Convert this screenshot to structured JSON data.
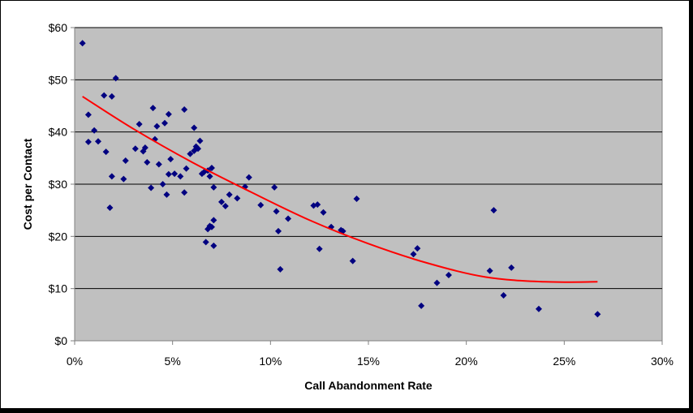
{
  "chart_data": {
    "type": "scatter",
    "title": "",
    "xlabel": "Call Abandonment Rate",
    "ylabel": "Cost per Contact",
    "xlim": [
      0,
      0.3
    ],
    "ylim": [
      0,
      60
    ],
    "x_ticks": [
      {
        "value": 0,
        "label": "0%"
      },
      {
        "value": 0.05,
        "label": "5%"
      },
      {
        "value": 0.1,
        "label": "10%"
      },
      {
        "value": 0.15,
        "label": "15%"
      },
      {
        "value": 0.2,
        "label": "20%"
      },
      {
        "value": 0.25,
        "label": "25%"
      },
      {
        "value": 0.3,
        "label": "30%"
      }
    ],
    "y_ticks": [
      {
        "value": 0,
        "label": "$0"
      },
      {
        "value": 10,
        "label": "$10"
      },
      {
        "value": 20,
        "label": "$20"
      },
      {
        "value": 30,
        "label": "$30"
      },
      {
        "value": 40,
        "label": "$40"
      },
      {
        "value": 50,
        "label": "$50"
      },
      {
        "value": 60,
        "label": "$60"
      }
    ],
    "grid": "horizontal",
    "legend": "none",
    "colors": {
      "plot_background": "#c0c0c0",
      "points": "#000080",
      "trendline": "#ff0000",
      "gridlines": "#000000"
    },
    "points": [
      [
        0.004,
        57.0
      ],
      [
        0.007,
        43.3
      ],
      [
        0.007,
        38.1
      ],
      [
        0.01,
        40.3
      ],
      [
        0.012,
        38.2
      ],
      [
        0.015,
        47.0
      ],
      [
        0.016,
        36.2
      ],
      [
        0.018,
        25.5
      ],
      [
        0.019,
        31.5
      ],
      [
        0.019,
        46.8
      ],
      [
        0.021,
        50.3
      ],
      [
        0.025,
        31.0
      ],
      [
        0.026,
        34.5
      ],
      [
        0.031,
        36.8
      ],
      [
        0.033,
        41.5
      ],
      [
        0.035,
        36.3
      ],
      [
        0.036,
        37.0
      ],
      [
        0.037,
        34.2
      ],
      [
        0.039,
        29.3
      ],
      [
        0.04,
        44.6
      ],
      [
        0.041,
        38.6
      ],
      [
        0.042,
        41.1
      ],
      [
        0.043,
        33.8
      ],
      [
        0.045,
        30.0
      ],
      [
        0.046,
        41.7
      ],
      [
        0.047,
        28.0
      ],
      [
        0.048,
        43.4
      ],
      [
        0.048,
        31.9
      ],
      [
        0.049,
        34.8
      ],
      [
        0.051,
        32.0
      ],
      [
        0.054,
        31.5
      ],
      [
        0.056,
        44.3
      ],
      [
        0.056,
        28.4
      ],
      [
        0.057,
        33.0
      ],
      [
        0.059,
        35.8
      ],
      [
        0.061,
        40.8
      ],
      [
        0.061,
        36.4
      ],
      [
        0.062,
        37.2
      ],
      [
        0.063,
        36.8
      ],
      [
        0.064,
        38.3
      ],
      [
        0.065,
        32.0
      ],
      [
        0.066,
        32.3
      ],
      [
        0.067,
        18.9
      ],
      [
        0.068,
        32.6
      ],
      [
        0.068,
        21.4
      ],
      [
        0.069,
        31.5
      ],
      [
        0.069,
        22.0
      ],
      [
        0.07,
        33.1
      ],
      [
        0.07,
        21.8
      ],
      [
        0.071,
        29.4
      ],
      [
        0.071,
        23.1
      ],
      [
        0.071,
        18.2
      ],
      [
        0.075,
        26.6
      ],
      [
        0.077,
        25.8
      ],
      [
        0.079,
        28.0
      ],
      [
        0.083,
        27.3
      ],
      [
        0.087,
        29.5
      ],
      [
        0.089,
        31.3
      ],
      [
        0.095,
        26.0
      ],
      [
        0.102,
        29.4
      ],
      [
        0.103,
        24.8
      ],
      [
        0.104,
        21.0
      ],
      [
        0.105,
        13.7
      ],
      [
        0.109,
        23.4
      ],
      [
        0.122,
        25.9
      ],
      [
        0.124,
        26.1
      ],
      [
        0.125,
        17.6
      ],
      [
        0.127,
        24.6
      ],
      [
        0.131,
        21.8
      ],
      [
        0.136,
        21.2
      ],
      [
        0.137,
        21.0
      ],
      [
        0.142,
        15.3
      ],
      [
        0.144,
        27.2
      ],
      [
        0.173,
        16.6
      ],
      [
        0.175,
        17.7
      ],
      [
        0.177,
        6.7
      ],
      [
        0.185,
        11.1
      ],
      [
        0.191,
        12.6
      ],
      [
        0.212,
        13.4
      ],
      [
        0.214,
        25.0
      ],
      [
        0.219,
        8.7
      ],
      [
        0.223,
        14.0
      ],
      [
        0.237,
        6.1
      ],
      [
        0.267,
        5.1
      ]
    ],
    "trendline": {
      "type": "polynomial",
      "x": [
        0.004,
        0.03,
        0.06,
        0.09,
        0.12,
        0.15,
        0.18,
        0.21,
        0.24,
        0.267
      ],
      "y": [
        46.8,
        40.6,
        34.2,
        28.5,
        23.1,
        18.6,
        14.9,
        12.2,
        11.3,
        11.3
      ]
    }
  }
}
